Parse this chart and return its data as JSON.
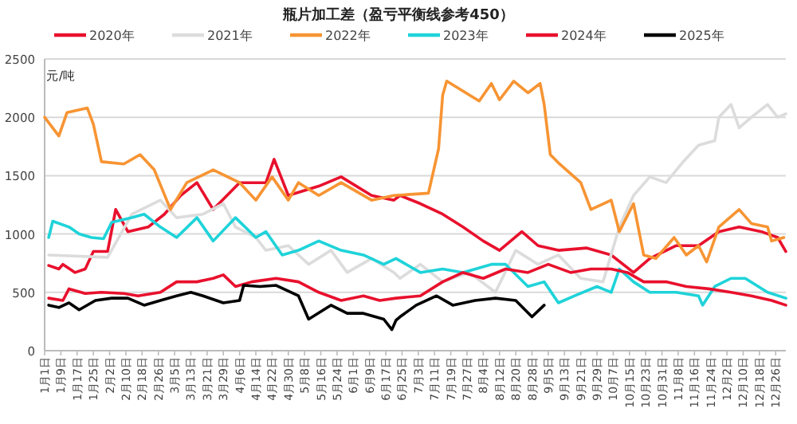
{
  "chart_data": {
    "type": "line",
    "title": "瓶片加工差（盈亏平衡线参考450）",
    "ylabel": "元/吨",
    "xlim": [
      "--01-01",
      "--12-31"
    ],
    "xticks": [
      {
        "value": "--01-01",
        "label": "1月1日"
      },
      {
        "value": "--01-09",
        "label": "1月9日"
      },
      {
        "value": "--01-17",
        "label": "1月17日"
      },
      {
        "value": "--01-25",
        "label": "1月25日"
      },
      {
        "value": "--02-02",
        "label": "2月2日"
      },
      {
        "value": "--02-10",
        "label": "2月10日"
      },
      {
        "value": "--02-18",
        "label": "2月18日"
      },
      {
        "value": "--02-26",
        "label": "2月26日"
      },
      {
        "value": "--03-05",
        "label": "3月5日"
      },
      {
        "value": "--03-13",
        "label": "3月13日"
      },
      {
        "value": "--03-21",
        "label": "3月21日"
      },
      {
        "value": "--03-29",
        "label": "3月29日"
      },
      {
        "value": "--04-06",
        "label": "4月6日"
      },
      {
        "value": "--04-14",
        "label": "4月14日"
      },
      {
        "value": "--04-22",
        "label": "4月22日"
      },
      {
        "value": "--04-30",
        "label": "4月30日"
      },
      {
        "value": "--05-08",
        "label": "5月8日"
      },
      {
        "value": "--05-16",
        "label": "5月16日"
      },
      {
        "value": "--05-24",
        "label": "5月24日"
      },
      {
        "value": "--06-01",
        "label": "6月1日"
      },
      {
        "value": "--06-09",
        "label": "6月9日"
      },
      {
        "value": "--06-17",
        "label": "6月17日"
      },
      {
        "value": "--06-25",
        "label": "6月25日"
      },
      {
        "value": "--07-03",
        "label": "7月3日"
      },
      {
        "value": "--07-11",
        "label": "7月11日"
      },
      {
        "value": "--07-19",
        "label": "7月19日"
      },
      {
        "value": "--07-27",
        "label": "7月27日"
      },
      {
        "value": "--08-04",
        "label": "8月4日"
      },
      {
        "value": "--08-12",
        "label": "8月12日"
      },
      {
        "value": "--08-20",
        "label": "8月20日"
      },
      {
        "value": "--08-28",
        "label": "8月28日"
      },
      {
        "value": "--09-05",
        "label": "9月5日"
      },
      {
        "value": "--09-13",
        "label": "9月13日"
      },
      {
        "value": "--09-21",
        "label": "9月21日"
      },
      {
        "value": "--09-29",
        "label": "9月29日"
      },
      {
        "value": "--10-07",
        "label": "10月7日"
      },
      {
        "value": "--10-15",
        "label": "10月15日"
      },
      {
        "value": "--10-23",
        "label": "10月23日"
      },
      {
        "value": "--10-31",
        "label": "10月31日"
      },
      {
        "value": "--11-08",
        "label": "11月8日"
      },
      {
        "value": "--11-16",
        "label": "11月16日"
      },
      {
        "value": "--11-24",
        "label": "11月24日"
      },
      {
        "value": "--12-02",
        "label": "12月2日"
      },
      {
        "value": "--12-10",
        "label": "12月10日"
      },
      {
        "value": "--12-18",
        "label": "12月18日"
      },
      {
        "value": "--12-26",
        "label": "12月26日"
      }
    ],
    "ylim": [
      0,
      2500
    ],
    "yticks": [
      0,
      500,
      1000,
      1500,
      2000,
      2500
    ],
    "grid": "y",
    "legend": "top",
    "series": [
      {
        "name": "2020年",
        "color": "#e8112d",
        "x": [
          "--01-03",
          "--01-08",
          "--01-10",
          "--01-16",
          "--01-21",
          "--01-25",
          "--02-01",
          "--02-05",
          "--02-11",
          "--02-21",
          "--02-29",
          "--03-08",
          "--03-16",
          "--03-24",
          "--04-06",
          "--04-19",
          "--04-23",
          "--04-30",
          "--05-15",
          "--05-26",
          "--06-10",
          "--06-21",
          "--06-24",
          "--07-04",
          "--07-15",
          "--07-25",
          "--08-04",
          "--08-12",
          "--08-23",
          "--08-31",
          "--09-10",
          "--09-24",
          "--10-06",
          "--10-17",
          "--10-25",
          "--11-07",
          "--11-18",
          "--11-28",
          "--12-08",
          "--12-19",
          "--12-27",
          "--12-31"
        ],
        "values": [
          730,
          700,
          740,
          670,
          700,
          850,
          850,
          1210,
          1020,
          1060,
          1170,
          1330,
          1440,
          1210,
          1440,
          1440,
          1640,
          1330,
          1410,
          1490,
          1330,
          1290,
          1330,
          1260,
          1170,
          1060,
          940,
          860,
          1020,
          900,
          860,
          880,
          820,
          670,
          790,
          900,
          900,
          1020,
          1060,
          1020,
          970,
          850
        ]
      },
      {
        "name": "2021年",
        "color": "#dcdcdc",
        "x": [
          "--01-03",
          "--02-01",
          "--02-13",
          "--02-27",
          "--03-06",
          "--03-19",
          "--03-29",
          "--04-04",
          "--04-14",
          "--04-19",
          "--04-30",
          "--05-10",
          "--05-21",
          "--05-29",
          "--06-10",
          "--06-21",
          "--06-24",
          "--07-04",
          "--07-15",
          "--07-28",
          "--08-10",
          "--08-20",
          "--08-31",
          "--09-10",
          "--09-21",
          "--10-02",
          "--10-10",
          "--10-17",
          "--10-25",
          "--11-02",
          "--11-10",
          "--11-18",
          "--11-26",
          "--11-28",
          "--12-04",
          "--12-08",
          "--12-14",
          "--12-22",
          "--12-27",
          "--12-31"
        ],
        "values": [
          820,
          800,
          1170,
          1290,
          1140,
          1170,
          1260,
          1060,
          970,
          860,
          900,
          740,
          860,
          670,
          790,
          670,
          620,
          740,
          590,
          670,
          500,
          860,
          740,
          820,
          620,
          590,
          1060,
          1330,
          1490,
          1440,
          1610,
          1760,
          1800,
          2000,
          2110,
          1910,
          2000,
          2110,
          2000,
          2030
        ]
      },
      {
        "name": "2022年",
        "color": "#f79433",
        "x": [
          "--01-01",
          "--01-08",
          "--01-12",
          "--01-22",
          "--01-25",
          "--01-29",
          "--02-09",
          "--02-17",
          "--02-24",
          "--03-03",
          "--03-11",
          "--03-24",
          "--04-06",
          "--04-14",
          "--04-22",
          "--04-30",
          "--05-05",
          "--05-15",
          "--05-26",
          "--06-10",
          "--06-21",
          "--07-08",
          "--07-13",
          "--07-15",
          "--07-17",
          "--08-02",
          "--08-08",
          "--08-12",
          "--08-19",
          "--08-26",
          "--09-01",
          "--09-03",
          "--09-06",
          "--09-10",
          "--09-21",
          "--09-26",
          "--10-06",
          "--10-10",
          "--10-17",
          "--10-22",
          "--10-28",
          "--11-06",
          "--11-12",
          "--11-18",
          "--11-22",
          "--11-28",
          "--12-08",
          "--12-14",
          "--12-22",
          "--12-24",
          "--12-30"
        ],
        "values": [
          2000,
          1840,
          2040,
          2080,
          1940,
          1620,
          1600,
          1680,
          1550,
          1210,
          1440,
          1550,
          1440,
          1290,
          1490,
          1290,
          1440,
          1330,
          1440,
          1290,
          1330,
          1350,
          1730,
          2190,
          2310,
          2140,
          2290,
          2150,
          2310,
          2210,
          2290,
          2110,
          1680,
          1610,
          1440,
          1210,
          1290,
          1020,
          1260,
          820,
          790,
          970,
          820,
          900,
          760,
          1060,
          1210,
          1090,
          1060,
          940,
          970
        ]
      },
      {
        "name": "2023年",
        "color": "#1fd3d9",
        "x": [
          "--01-03",
          "--01-05",
          "--01-13",
          "--01-18",
          "--01-24",
          "--01-30",
          "--02-03",
          "--02-13",
          "--02-19",
          "--02-27",
          "--03-06",
          "--03-16",
          "--03-24",
          "--04-04",
          "--04-14",
          "--04-19",
          "--04-27",
          "--05-05",
          "--05-15",
          "--05-26",
          "--06-06",
          "--06-16",
          "--06-22",
          "--07-04",
          "--07-15",
          "--07-25",
          "--08-08",
          "--08-15",
          "--08-26",
          "--09-03",
          "--09-10",
          "--09-18",
          "--09-29",
          "--10-06",
          "--10-10",
          "--10-17",
          "--10-25",
          "--11-07",
          "--11-18",
          "--11-20",
          "--11-26",
          "--12-04",
          "--12-11",
          "--12-22",
          "--12-31"
        ],
        "values": [
          970,
          1110,
          1060,
          1000,
          970,
          960,
          1100,
          1140,
          1170,
          1060,
          970,
          1140,
          940,
          1140,
          970,
          1020,
          820,
          860,
          940,
          860,
          820,
          740,
          790,
          670,
          700,
          670,
          740,
          740,
          550,
          590,
          410,
          470,
          550,
          500,
          700,
          590,
          500,
          500,
          470,
          390,
          550,
          620,
          620,
          500,
          450
        ]
      },
      {
        "name": "2024年",
        "color": "#e8112d",
        "x": [
          "--01-03",
          "--01-10",
          "--01-13",
          "--01-21",
          "--01-29",
          "--02-09",
          "--02-16",
          "--02-27",
          "--03-06",
          "--03-16",
          "--03-24",
          "--03-29",
          "--04-04",
          "--04-12",
          "--04-24",
          "--05-05",
          "--05-15",
          "--05-26",
          "--06-06",
          "--06-14",
          "--06-22",
          "--07-04",
          "--07-15",
          "--07-25",
          "--08-04",
          "--08-15",
          "--08-26",
          "--09-05",
          "--09-16",
          "--09-26",
          "--10-06",
          "--10-14",
          "--10-22",
          "--11-02",
          "--11-12",
          "--11-23",
          "--12-04",
          "--12-14",
          "--12-24",
          "--12-31"
        ],
        "values": [
          450,
          430,
          530,
          490,
          500,
          490,
          470,
          500,
          590,
          590,
          620,
          650,
          550,
          590,
          620,
          590,
          500,
          430,
          470,
          430,
          450,
          470,
          590,
          670,
          620,
          700,
          670,
          740,
          670,
          700,
          700,
          670,
          590,
          590,
          550,
          530,
          500,
          470,
          430,
          390
        ]
      },
      {
        "name": "2025年",
        "color": "#000000",
        "x": [
          "--01-03",
          "--01-08",
          "--01-13",
          "--01-18",
          "--01-26",
          "--02-03",
          "--02-11",
          "--02-19",
          "--02-27",
          "--03-06",
          "--03-13",
          "--03-19",
          "--03-29",
          "--04-06",
          "--04-08",
          "--04-16",
          "--04-24",
          "--05-05",
          "--05-10",
          "--05-21",
          "--05-29",
          "--06-06",
          "--06-16",
          "--06-20",
          "--06-22",
          "--06-24",
          "--07-02",
          "--07-12",
          "--07-20",
          "--07-31",
          "--08-10",
          "--08-20",
          "--08-28",
          "--09-03"
        ],
        "values": [
          390,
          370,
          410,
          350,
          430,
          450,
          450,
          390,
          430,
          470,
          500,
          470,
          410,
          430,
          560,
          550,
          560,
          470,
          270,
          390,
          320,
          320,
          270,
          180,
          260,
          290,
          390,
          470,
          390,
          430,
          450,
          430,
          290,
          390
        ]
      }
    ]
  }
}
